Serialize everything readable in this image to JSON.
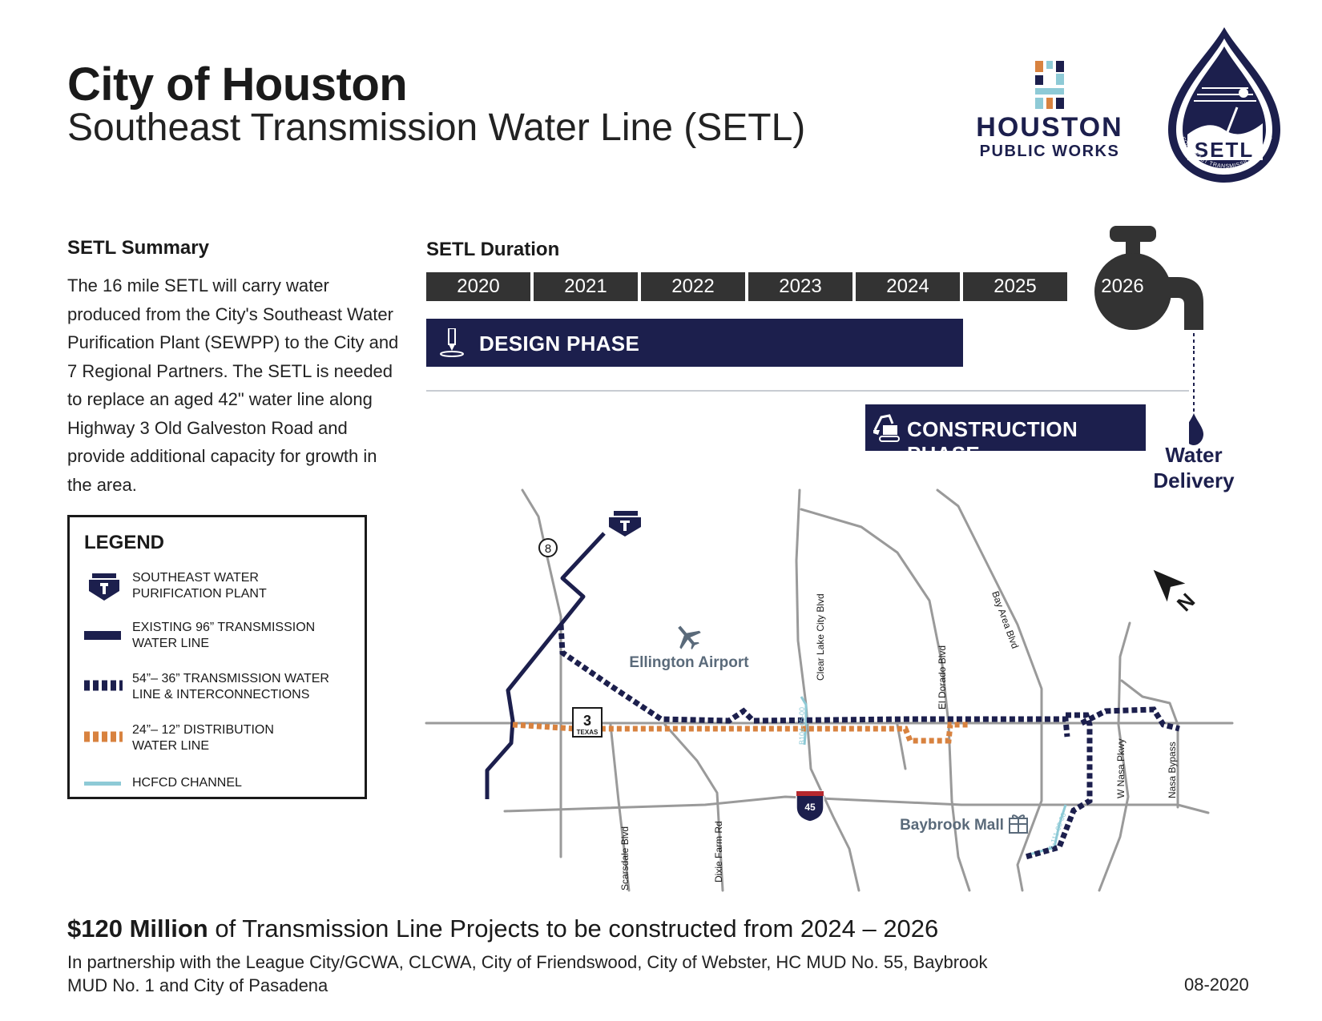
{
  "header": {
    "title": "City of Houston",
    "subtitle": "Southeast Transmission Water Line (SETL)"
  },
  "logos": {
    "hpw_line1": "HOUSTON",
    "hpw_line2": "PUBLIC WORKS",
    "setl_name": "SETL",
    "setl_ring_text": "SOUTHEAST TRANSMISSION WATERLINE"
  },
  "summary": {
    "heading": "SETL Summary",
    "text": "The 16 mile SETL will carry water produced from the City's Southeast Water Purification Plant (SEWPP) to the City and 7 Regional Partners. The SETL is needed to replace an aged 42\" water line along Highway 3 Old Galveston Road and provide additional capacity for growth in the area."
  },
  "legend": {
    "title": "LEGEND",
    "items": [
      {
        "line1": "SOUTHEAST WATER",
        "line2": "PURIFICATION PLANT",
        "symbol": "plant-icon"
      },
      {
        "line1": "EXISTING 96” TRANSMISSION",
        "line2": "WATER LINE",
        "symbol": "solid-navy-line",
        "color": "#1c1f4d"
      },
      {
        "line1": "54”– 36” TRANSMISSION WATER",
        "line2": "LINE & INTERCONNECTIONS",
        "symbol": "dashed-navy-line",
        "color": "#1c1f4d"
      },
      {
        "line1": "24”– 12” DISTRIBUTION",
        "line2": "WATER LINE",
        "symbol": "dashed-orange-line",
        "color": "#d8823f"
      },
      {
        "line1": "HCFCD CHANNEL",
        "line2": "",
        "symbol": "teal-line",
        "color": "#8ecad6"
      }
    ]
  },
  "timeline": {
    "heading": "SETL Duration",
    "years": [
      "2020",
      "2021",
      "2022",
      "2023",
      "2024",
      "2025",
      "2026"
    ],
    "design_phase": {
      "label": "DESIGN PHASE",
      "start": 2020,
      "end": 2024
    },
    "construction_phase": {
      "label": "CONSTRUCTION PHASE",
      "start": 2024,
      "end": 2026
    },
    "water_delivery": "Water Delivery",
    "colors": {
      "phase": "#1c1f4d",
      "year_cell": "#333333"
    }
  },
  "map": {
    "highway_shields": [
      "8",
      "3",
      "TEXAS",
      "45"
    ],
    "places": {
      "airport": "Ellington Airport",
      "mall": "Baybrook Mall"
    },
    "roads": [
      "Scarsdale Blvd",
      "Dixie Farm Rd",
      "Clear Lake City Blvd",
      "El Dorado Blvd",
      "Bay Area Blvd",
      "W Nasa Pkwy",
      "Nasa Bypass"
    ],
    "channels": [
      "B104-05-00",
      "A-111-00-00"
    ],
    "north_label": "N",
    "colors": {
      "road": "#9a9a9a",
      "transmission": "#1c1f4d",
      "distribution": "#d8823f",
      "channel": "#8ecad6",
      "place": "#5a6a7a"
    }
  },
  "footer": {
    "amount": "$120 Million",
    "rest": " of Transmission Line Projects to be constructed from 2024 – 2026",
    "partners": "In partnership with the League City/GCWA, CLCWA, City of Friendswood, City of Webster, HC MUD No. 55, Baybrook MUD No. 1 and City of Pasadena",
    "date": "08-2020"
  }
}
